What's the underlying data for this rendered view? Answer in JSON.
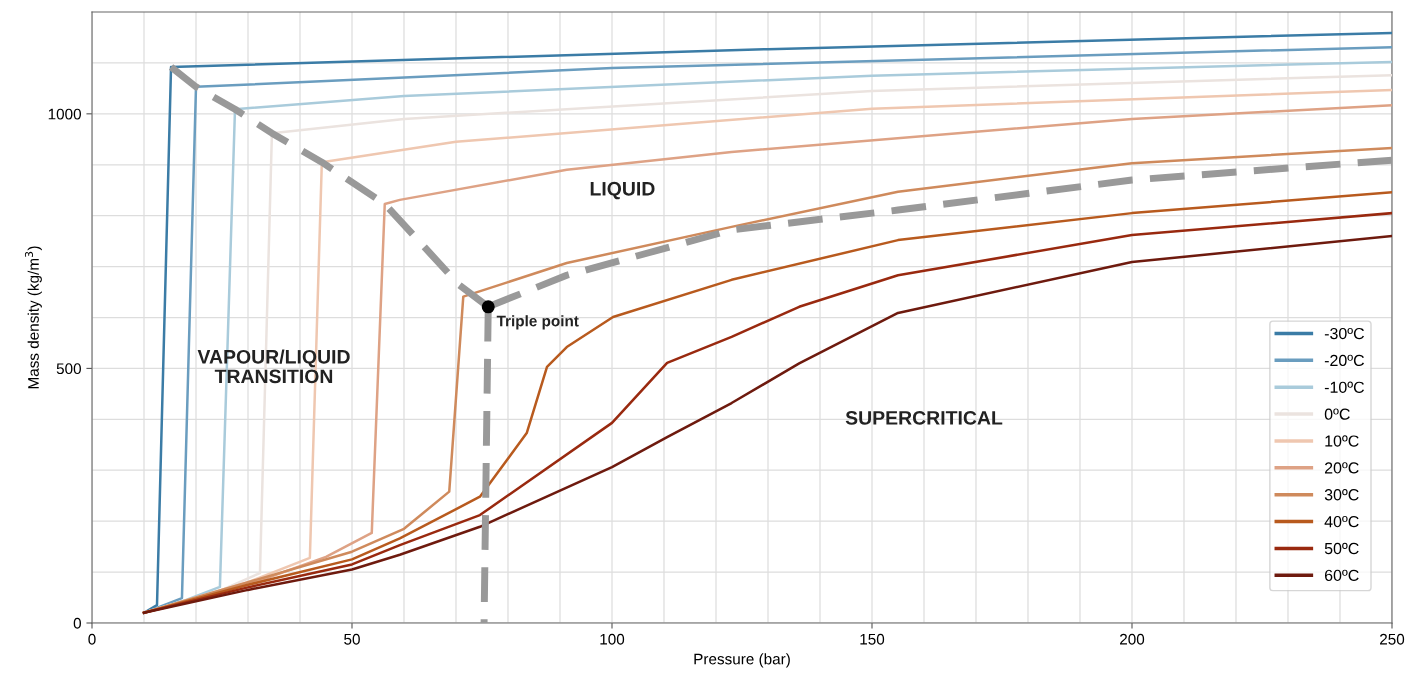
{
  "chart_data": {
    "type": "line",
    "xlabel": "Pressure (bar)",
    "ylabel": "Mass density (kg/m$^{3}$)",
    "xlim": [
      0,
      250
    ],
    "ylim": [
      0,
      1200
    ],
    "xticks": [
      0,
      {
        "value": 10,
        "label": null
      },
      {
        "value": 20,
        "label": null
      },
      {
        "value": 30,
        "label": null
      },
      {
        "value": 40,
        "label": null
      },
      50,
      {
        "value": 60,
        "label": null
      },
      {
        "value": 70,
        "label": null
      },
      {
        "value": 80,
        "label": null
      },
      {
        "value": 90,
        "label": null
      },
      100,
      {
        "value": 110,
        "label": null
      },
      {
        "value": 120,
        "label": null
      },
      {
        "value": 130,
        "label": null
      },
      {
        "value": 140,
        "label": null
      },
      150,
      {
        "value": 160,
        "label": null
      },
      {
        "value": 170,
        "label": null
      },
      {
        "value": 180,
        "label": null
      },
      {
        "value": 190,
        "label": null
      },
      200,
      {
        "value": 210,
        "label": null
      },
      {
        "value": 220,
        "label": null
      },
      {
        "value": 230,
        "label": null
      },
      {
        "value": 240,
        "label": null
      },
      250
    ],
    "yticks": [
      0,
      {
        "value": 100,
        "label": null
      },
      {
        "value": 200,
        "label": null
      },
      {
        "value": 300,
        "label": null
      },
      {
        "value": 400,
        "label": null
      },
      500,
      {
        "value": 600,
        "label": null
      },
      {
        "value": 700,
        "label": null
      },
      {
        "value": 800,
        "label": null
      },
      {
        "value": 900,
        "label": null
      },
      1000,
      {
        "value": 1100,
        "label": null
      }
    ],
    "grid": true,
    "legend": "bottom right",
    "marker": "none",
    "line_style": "solid",
    "series": [
      {
        "name": "-30ºC",
        "color": "#3b7ca6",
        "x": [
          10,
          12.5,
          15.2,
          130,
          250
        ],
        "values": [
          20,
          35,
          1092,
          1127,
          1159
        ]
      },
      {
        "name": "-20ºC",
        "color": "#6a9dbf",
        "x": [
          10,
          17.3,
          20,
          100,
          250
        ],
        "values": [
          20,
          49,
          1053,
          1090,
          1131
        ]
      },
      {
        "name": "-10ºC",
        "color": "#a9cbdb",
        "x": [
          10,
          18,
          24.6,
          27.5,
          60,
          150,
          250
        ],
        "values": [
          20,
          45,
          71,
          1009,
          1035,
          1075,
          1102
        ]
      },
      {
        "name": "0ºC",
        "color": "#ebe3df",
        "x": [
          10,
          25,
          32.3,
          34.6,
          60,
          150,
          250
        ],
        "values": [
          20,
          65,
          98,
          962,
          990,
          1045,
          1076
        ]
      },
      {
        "name": "10ºC",
        "color": "#efc7b0",
        "x": [
          10,
          30,
          41.9,
          44.2,
          70,
          150,
          250
        ],
        "values": [
          20,
          80,
          128,
          905,
          945,
          1010,
          1047
        ]
      },
      {
        "name": "20ºC",
        "color": "#dea285",
        "x": [
          10,
          30,
          45,
          53.8,
          56.3,
          59.2,
          91.3,
          123,
          200,
          250
        ],
        "values": [
          20,
          75,
          130,
          177,
          823,
          831,
          890,
          925,
          990,
          1017
        ]
      },
      {
        "name": "30ºC",
        "color": "#cf8a5c",
        "x": [
          10,
          30,
          50,
          60,
          68.7,
          71.4,
          91.3,
          123,
          155,
          200,
          250
        ],
        "values": [
          20,
          80,
          140,
          185,
          258,
          641,
          707,
          778,
          847,
          903,
          933
        ]
      },
      {
        "name": "40ºC",
        "color": "#b85a1e",
        "x": [
          10,
          30,
          50,
          59.2,
          74.6,
          83.6,
          87.5,
          91.3,
          100.2,
          123,
          155,
          200,
          250
        ],
        "values": [
          20,
          75,
          125,
          166,
          248,
          373,
          503,
          542,
          601,
          674,
          752,
          805,
          846
        ]
      },
      {
        "name": "50ºC",
        "color": "#99290f",
        "x": [
          10,
          30,
          50,
          59.2,
          74.6,
          100,
          110.6,
          123,
          136,
          155,
          200,
          250
        ],
        "values": [
          20,
          70,
          115,
          153,
          212,
          393,
          511,
          562,
          621,
          683,
          762,
          805
        ]
      },
      {
        "name": "60ºC",
        "color": "#6e1a0e",
        "x": [
          10,
          30,
          50,
          59.2,
          74.6,
          100,
          110.6,
          123,
          136,
          155,
          200,
          250
        ],
        "values": [
          20,
          65,
          105,
          134,
          189,
          306,
          365,
          432,
          510,
          609,
          709,
          760
        ]
      },
      {
        "color": "#999999",
        "line_style": "dashed",
        "x": [
          15.2,
          20,
          27.5,
          34.6,
          44.2,
          56.3,
          70.6,
          76.2
        ],
        "values": [
          1092,
          1053,
          1009,
          962,
          905,
          823,
          664,
          621
        ]
      },
      {
        "color": "#999999",
        "line_style": "dashed",
        "x": [
          76.2,
          75.4
        ],
        "values": [
          621,
          0
        ]
      },
      {
        "color": "#999999",
        "line_style": "dashed",
        "x": [
          76.2,
          91.3,
          123,
          155,
          200,
          250
        ],
        "values": [
          621,
          683,
          772,
          811,
          870,
          909
        ]
      },
      {
        "type": "scatter",
        "color": "#000000",
        "marker": "circle",
        "x": [
          76.2
        ],
        "values": [
          621
        ]
      }
    ],
    "annotations": [
      {
        "text": "Triple point",
        "x": 76.2,
        "y": 621
      },
      "LIQUID",
      "VAPOUR/LIQUID\nTRANSITION",
      "SUPERCRITICAL"
    ]
  }
}
